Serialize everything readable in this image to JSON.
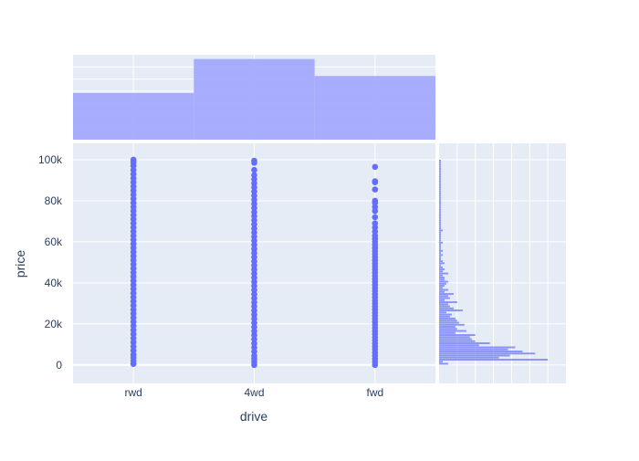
{
  "chart_data": {
    "type": "scatter",
    "title": "",
    "xlabel": "drive",
    "ylabel": "price",
    "categories": [
      "rwd",
      "4wd",
      "fwd"
    ],
    "ylim": [
      -9000,
      108000
    ],
    "yticks": [
      0,
      20000,
      40000,
      60000,
      80000,
      100000
    ],
    "ytick_labels": [
      "0",
      "20k",
      "40k",
      "60k",
      "80k",
      "100k"
    ],
    "marker_color": "#636efa",
    "hist_color": "#a3aafc",
    "plot_bg": "#e5ecf6",
    "grid": true,
    "series": [
      {
        "name": "rwd",
        "values": [
          500,
          2000,
          3500,
          5000,
          7000,
          9000,
          11000,
          13000,
          15000,
          17000,
          19000,
          21000,
          23000,
          25000,
          27000,
          29000,
          31000,
          33000,
          35000,
          37000,
          39000,
          41000,
          43000,
          45000,
          47000,
          49000,
          51000,
          53000,
          55000,
          57000,
          59000,
          61000,
          63000,
          65000,
          67000,
          69000,
          71000,
          73000,
          75000,
          77000,
          79000,
          81000,
          83000,
          85000,
          87000,
          89000,
          91000,
          93000,
          95000,
          97000,
          98500,
          99500,
          100000
        ]
      },
      {
        "name": "4wd",
        "values": [
          0,
          1500,
          3000,
          4500,
          6500,
          8500,
          10500,
          12500,
          14500,
          16500,
          18500,
          20500,
          22500,
          24500,
          26500,
          28500,
          30500,
          32500,
          34500,
          36500,
          38500,
          40500,
          42500,
          44500,
          46500,
          48500,
          50500,
          52500,
          54500,
          56500,
          58500,
          60500,
          62500,
          64500,
          66500,
          68500,
          70500,
          72500,
          74500,
          76500,
          78500,
          80500,
          82500,
          84500,
          86500,
          88500,
          90500,
          92500,
          95000,
          98500,
          99500
        ]
      },
      {
        "name": "fwd",
        "values": [
          0,
          1500,
          3000,
          4500,
          6000,
          7500,
          9000,
          10500,
          12000,
          13500,
          15000,
          16500,
          18000,
          19500,
          21000,
          22500,
          24000,
          25500,
          27000,
          28500,
          30000,
          31500,
          33000,
          34500,
          36000,
          37500,
          39000,
          40500,
          42000,
          43500,
          45000,
          46500,
          48000,
          49500,
          51000,
          52500,
          54000,
          55500,
          57000,
          58500,
          60000,
          61500,
          63000,
          65000,
          67000,
          69000,
          72000,
          75000,
          77000,
          79000,
          80000,
          85500,
          89000,
          89500,
          96500
        ]
      }
    ],
    "marginal_x": {
      "type": "histogram",
      "categories": [
        "rwd",
        "4wd",
        "fwd"
      ],
      "values": [
        0.55,
        0.95,
        0.75
      ]
    },
    "marginal_y": {
      "type": "histogram",
      "orientation": "horizontal",
      "bin_width": 1000,
      "counts": [
        5,
        2,
        60,
        33,
        39,
        53,
        46,
        38,
        42,
        22,
        28,
        20,
        18,
        17,
        20,
        9,
        15,
        10,
        9,
        14,
        11,
        10,
        9,
        6,
        7,
        4,
        13,
        8,
        6,
        5,
        10,
        3,
        6,
        5,
        8,
        3,
        5,
        2,
        3,
        4,
        5,
        3,
        3,
        2,
        5,
        2,
        3,
        2,
        1,
        3,
        2,
        1,
        1,
        2,
        1,
        2,
        1,
        1,
        1,
        2,
        1,
        1,
        1,
        1,
        1,
        2,
        1,
        1,
        1,
        1,
        1,
        1,
        1,
        1,
        1,
        1,
        1,
        1,
        1,
        1,
        1,
        1,
        1,
        1,
        1,
        1,
        1,
        1,
        1,
        1,
        1,
        1,
        1,
        1,
        1,
        1,
        1,
        1,
        1,
        1
      ],
      "count_max": 70,
      "count_grid": [
        10,
        20,
        30,
        40,
        50,
        60
      ]
    }
  }
}
